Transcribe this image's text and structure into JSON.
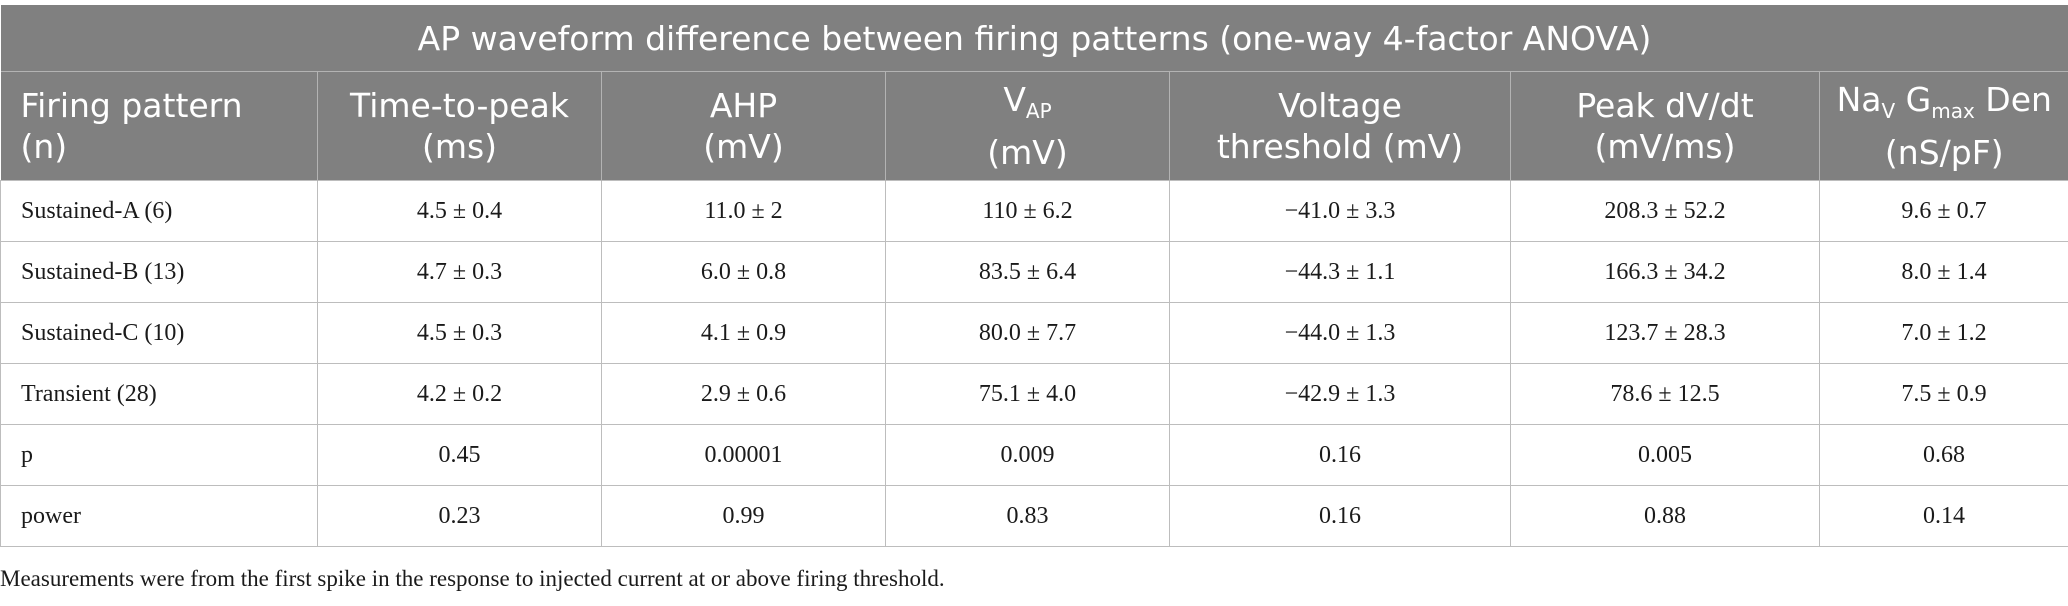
{
  "table": {
    "title": "AP waveform difference between firing patterns (one-way 4-factor ANOVA)",
    "headers": {
      "firing_pattern": [
        "Firing pattern",
        "(n)"
      ],
      "time_to_peak": [
        "Time-to-peak",
        "(ms)"
      ],
      "ahp": [
        "AHP",
        "(mV)"
      ],
      "vap": {
        "main": "V",
        "sub": "AP",
        "unit": "(mV)"
      },
      "voltage_threshold": [
        "Voltage",
        "threshold (mV)"
      ],
      "peak_dvdt": [
        "Peak dV/dt",
        "(mV/ms)"
      ],
      "nav_gmax": {
        "na": "Na",
        "na_sub": "V",
        "g": " G",
        "g_sub": "max",
        "den": " Den",
        "unit": "(nS/pF)"
      }
    },
    "rows": [
      [
        "Sustained-A (6)",
        "4.5 ± 0.4",
        "11.0 ± 2",
        "110 ± 6.2",
        "−41.0 ± 3.3",
        "208.3 ± 52.2",
        "9.6 ± 0.7"
      ],
      [
        "Sustained-B (13)",
        "4.7 ± 0.3",
        "6.0 ± 0.8",
        "83.5 ± 6.4",
        "−44.3 ± 1.1",
        "166.3 ± 34.2",
        "8.0 ± 1.4"
      ],
      [
        "Sustained-C (10)",
        "4.5 ± 0.3",
        "4.1 ± 0.9",
        "80.0 ± 7.7",
        "−44.0 ± 1.3",
        "123.7 ± 28.3",
        "7.0 ± 1.2"
      ],
      [
        "Transient (28)",
        "4.2 ± 0.2",
        "2.9 ± 0.6",
        "75.1 ± 4.0",
        "−42.9 ± 1.3",
        "78.6 ± 12.5",
        "7.5 ± 0.9"
      ],
      [
        "p",
        "0.45",
        "0.00001",
        "0.009",
        "0.16",
        "0.005",
        "0.68"
      ],
      [
        "power",
        "0.23",
        "0.99",
        "0.83",
        "0.16",
        "0.88",
        "0.14"
      ]
    ]
  },
  "footnote": "Measurements were from the first spike in the response to injected current at or above firing threshold."
}
